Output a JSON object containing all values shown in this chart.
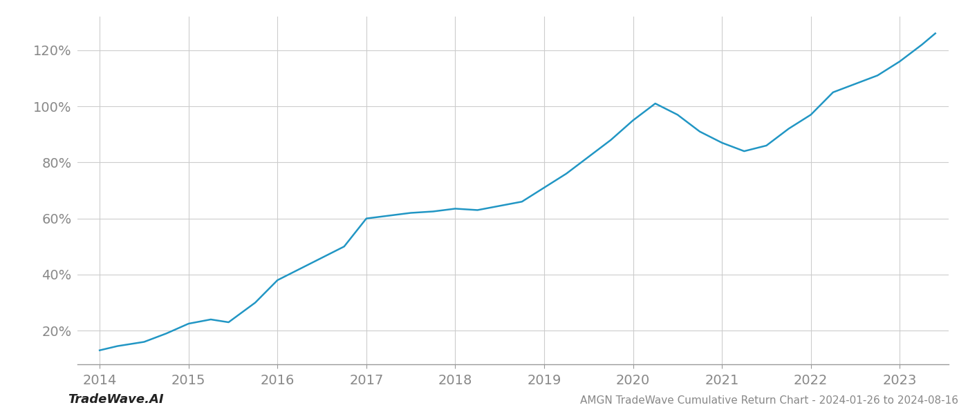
{
  "title": "AMGN TradeWave Cumulative Return Chart - 2024-01-26 to 2024-08-16",
  "watermark": "TradeWave.AI",
  "line_color": "#2196c4",
  "line_width": 1.8,
  "background_color": "#ffffff",
  "grid_color": "#cccccc",
  "x_values": [
    2014.0,
    2014.2,
    2014.5,
    2014.75,
    2015.0,
    2015.25,
    2015.45,
    2015.75,
    2016.0,
    2016.25,
    2016.5,
    2016.75,
    2017.0,
    2017.25,
    2017.5,
    2017.75,
    2018.0,
    2018.25,
    2018.5,
    2018.75,
    2019.0,
    2019.25,
    2019.5,
    2019.75,
    2020.0,
    2020.25,
    2020.5,
    2020.75,
    2021.0,
    2021.25,
    2021.5,
    2021.75,
    2022.0,
    2022.25,
    2022.5,
    2022.75,
    2023.0,
    2023.25,
    2023.4
  ],
  "y_values": [
    13.0,
    14.5,
    16.0,
    19.0,
    22.5,
    24.0,
    23.0,
    30.0,
    38.0,
    42.0,
    46.0,
    50.0,
    60.0,
    61.0,
    62.0,
    62.5,
    63.5,
    63.0,
    64.5,
    66.0,
    71.0,
    76.0,
    82.0,
    88.0,
    95.0,
    101.0,
    97.0,
    91.0,
    87.0,
    84.0,
    86.0,
    92.0,
    97.0,
    105.0,
    108.0,
    111.0,
    116.0,
    122.0,
    126.0
  ],
  "xlim": [
    2013.75,
    2023.55
  ],
  "ylim": [
    8,
    132
  ],
  "yticks": [
    20,
    40,
    60,
    80,
    100,
    120
  ],
  "xticks": [
    2014,
    2015,
    2016,
    2017,
    2018,
    2019,
    2020,
    2021,
    2022,
    2023
  ],
  "tick_fontsize": 14,
  "title_fontsize": 11,
  "watermark_fontsize": 13
}
